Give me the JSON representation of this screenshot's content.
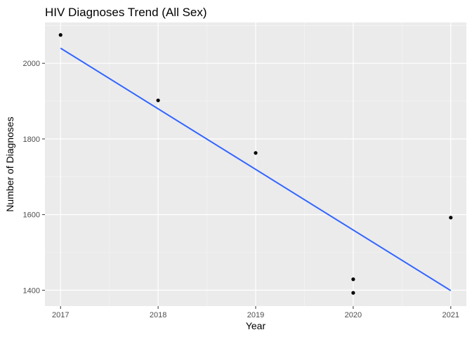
{
  "chart_data": {
    "type": "scatter",
    "title": "HIV Diagnoses Trend (All Sex)",
    "xlabel": "Year",
    "ylabel": "Number of Diagnoses",
    "xlim": [
      2016.84,
      2021.16
    ],
    "ylim": [
      1358,
      2108
    ],
    "x_ticks": [
      2017,
      2018,
      2019,
      2020,
      2021
    ],
    "y_ticks": [
      1400,
      1600,
      1800,
      2000
    ],
    "grid": true,
    "legend": "none",
    "points": [
      {
        "x": 2017,
        "y": 2075
      },
      {
        "x": 2018,
        "y": 1902
      },
      {
        "x": 2019,
        "y": 1763
      },
      {
        "x": 2020,
        "y": 1429
      },
      {
        "x": 2020,
        "y": 1393
      },
      {
        "x": 2021,
        "y": 1592
      }
    ],
    "trend_line": {
      "type": "linear",
      "start": {
        "x": 2017,
        "y": 2040
      },
      "end": {
        "x": 2021,
        "y": 1399
      }
    },
    "colors": {
      "panel": "#ebebeb",
      "grid_major": "#ffffff",
      "grid_minor": "#f5f5f5",
      "points": "#000000",
      "trend_line": "#3366ff"
    }
  }
}
